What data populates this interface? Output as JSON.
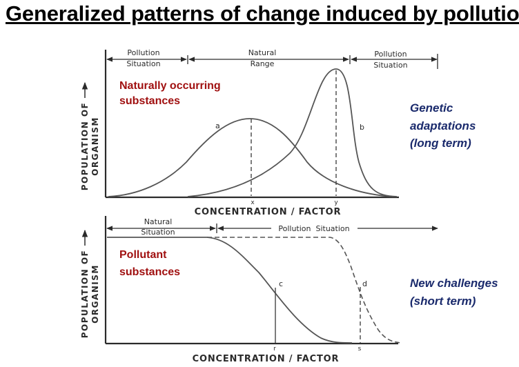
{
  "title": "Generalized patterns of change induced by pollution",
  "top_panel": {
    "ranges": {
      "left_line1": "Pollution",
      "left_line2": "Situation",
      "mid_line1": "Natural",
      "mid_line2": "Range",
      "right_line1": "Pollution",
      "right_line2": "Situation"
    },
    "ylabel_line1": "POPULATION OF",
    "ylabel_line2": "ORGANISM",
    "xlabel": "CONCENTRATION / FACTOR",
    "curve_a": "a",
    "curve_b": "b",
    "tick_x": "x",
    "tick_y": "y",
    "annotation_line1": "Naturally occurring",
    "annotation_line2": "substances",
    "side_line1": "Genetic",
    "side_line2": "adaptations",
    "side_line3": "(long term)"
  },
  "bottom_panel": {
    "ranges": {
      "left_line1": "Natural",
      "left_line2": "Situation",
      "right_text": "Pollution  Situation"
    },
    "ylabel_line1": "POPULATION OF",
    "ylabel_line2": "ORGANISM",
    "xlabel": "CONCENTRATION / FACTOR",
    "curve_c": "c",
    "curve_d": "d",
    "tick_r": "r",
    "tick_s": "s",
    "annotation_line1": "Pollutant",
    "annotation_line2": "substances",
    "side_line1": "New challenges",
    "side_line2": "(short term)"
  },
  "colors": {
    "annotation_red": "#a01010",
    "side_blue": "#1a2a6c",
    "ink": "#2a2a2a"
  }
}
